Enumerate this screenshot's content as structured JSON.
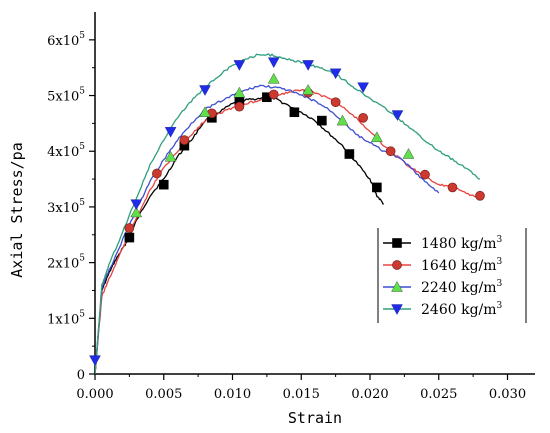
{
  "chart_data": {
    "type": "line",
    "xlabel": "Strain",
    "ylabel": "Axial Stress/pa",
    "xlim": [
      0,
      0.032
    ],
    "ylim": [
      0,
      650000
    ],
    "x_ticks": [
      0,
      0.005,
      0.01,
      0.015,
      0.02,
      0.025,
      0.03
    ],
    "x_tick_labels": [
      "0.000",
      "0.005",
      "0.010",
      "0.015",
      "0.020",
      "0.025",
      "0.030"
    ],
    "y_ticks": [
      0,
      100000,
      200000,
      300000,
      400000,
      500000,
      600000
    ],
    "y_tick_labels": [
      {
        "base": "0",
        "exp": ""
      },
      {
        "base": "1x10",
        "exp": "5"
      },
      {
        "base": "2x10",
        "exp": "5"
      },
      {
        "base": "3x10",
        "exp": "5"
      },
      {
        "base": "4x10",
        "exp": "5"
      },
      {
        "base": "5x10",
        "exp": "5"
      },
      {
        "base": "6x10",
        "exp": "5"
      }
    ],
    "legend_position": "bottom-right",
    "grid": false,
    "series": [
      {
        "name": "1480 kg/m",
        "name_sup": "3",
        "color": "#000000",
        "marker": "square",
        "x": [
          0.0,
          0.0005,
          0.001,
          0.0015,
          0.002,
          0.0025,
          0.003,
          0.004,
          0.005,
          0.006,
          0.007,
          0.008,
          0.009,
          0.01,
          0.011,
          0.012,
          0.013,
          0.014,
          0.015,
          0.016,
          0.017,
          0.018,
          0.019,
          0.02,
          0.0205,
          0.021
        ],
        "y": [
          0,
          150000,
          180000,
          205000,
          225000,
          245000,
          275000,
          320000,
          350000,
          390000,
          420000,
          455000,
          470000,
          485000,
          492000,
          495000,
          495000,
          483000,
          470000,
          455000,
          432000,
          410000,
          380000,
          350000,
          320000,
          305000
        ],
        "marker_x": [
          0.0025,
          0.005,
          0.0065,
          0.0085,
          0.0105,
          0.0125,
          0.0145,
          0.0165,
          0.0185,
          0.0205
        ],
        "marker_y": [
          245000,
          340000,
          410000,
          460000,
          490000,
          497000,
          470000,
          455000,
          395000,
          335000
        ]
      },
      {
        "name": "1640 kg/m",
        "name_sup": "3",
        "color": "#e8433f",
        "marker": "circle",
        "x": [
          0.0,
          0.0005,
          0.001,
          0.002,
          0.003,
          0.004,
          0.005,
          0.006,
          0.007,
          0.008,
          0.009,
          0.01,
          0.011,
          0.012,
          0.013,
          0.014,
          0.015,
          0.016,
          0.017,
          0.018,
          0.019,
          0.02,
          0.021,
          0.022,
          0.023,
          0.024,
          0.025,
          0.026,
          0.027,
          0.028
        ],
        "y": [
          0,
          140000,
          170000,
          225000,
          280000,
          330000,
          370000,
          400000,
          430000,
          455000,
          468000,
          478000,
          485000,
          493000,
          500000,
          505000,
          510000,
          505000,
          495000,
          480000,
          460000,
          435000,
          410000,
          390000,
          370000,
          355000,
          340000,
          335000,
          325000,
          315000
        ],
        "marker_x": [
          0.0025,
          0.0045,
          0.0065,
          0.0085,
          0.0105,
          0.013,
          0.0155,
          0.0175,
          0.0195,
          0.0215,
          0.024,
          0.026,
          0.028
        ],
        "marker_y": [
          262000,
          360000,
          420000,
          468000,
          480000,
          502000,
          505000,
          488000,
          460000,
          400000,
          358000,
          335000,
          320000
        ]
      },
      {
        "name": "2240 kg/m",
        "name_sup": "3",
        "color": "#3f4fcf",
        "marker": "triangle-up",
        "x": [
          0.0,
          0.0005,
          0.001,
          0.002,
          0.003,
          0.004,
          0.005,
          0.006,
          0.007,
          0.008,
          0.009,
          0.01,
          0.011,
          0.012,
          0.013,
          0.014,
          0.015,
          0.016,
          0.017,
          0.018,
          0.019,
          0.02,
          0.021,
          0.022,
          0.023,
          0.024,
          0.025
        ],
        "y": [
          0,
          155000,
          185000,
          240000,
          295000,
          345000,
          385000,
          420000,
          450000,
          475000,
          488000,
          500000,
          510000,
          518000,
          515000,
          510000,
          500000,
          490000,
          475000,
          455000,
          430000,
          415000,
          400000,
          390000,
          370000,
          345000,
          325000
        ],
        "marker_x": [
          0.003,
          0.0055,
          0.008,
          0.0105,
          0.013,
          0.0155,
          0.018,
          0.0205,
          0.0228
        ],
        "marker_y": [
          290000,
          390000,
          470000,
          505000,
          530000,
          510000,
          455000,
          425000,
          395000
        ]
      },
      {
        "name": "2460 kg/m",
        "name_sup": "3",
        "color": "#2f9f7f",
        "marker": "triangle-down",
        "x": [
          0.0,
          0.0005,
          0.001,
          0.002,
          0.003,
          0.004,
          0.005,
          0.006,
          0.007,
          0.008,
          0.009,
          0.01,
          0.011,
          0.012,
          0.013,
          0.014,
          0.015,
          0.016,
          0.017,
          0.018,
          0.019,
          0.02,
          0.021,
          0.022,
          0.023,
          0.024,
          0.025,
          0.026,
          0.027,
          0.028
        ],
        "y": [
          0,
          160000,
          195000,
          255000,
          315000,
          375000,
          420000,
          460000,
          490000,
          515000,
          535000,
          555000,
          565000,
          575000,
          572000,
          565000,
          560000,
          552000,
          545000,
          530000,
          512000,
          495000,
          478000,
          460000,
          440000,
          420000,
          400000,
          385000,
          370000,
          350000
        ],
        "marker_x": [
          0.0,
          0.003,
          0.0055,
          0.008,
          0.0105,
          0.013,
          0.0155,
          0.0175,
          0.0195,
          0.022
        ],
        "marker_y": [
          25000,
          305000,
          435000,
          510000,
          555000,
          560000,
          555000,
          540000,
          515000,
          465000
        ]
      }
    ]
  }
}
